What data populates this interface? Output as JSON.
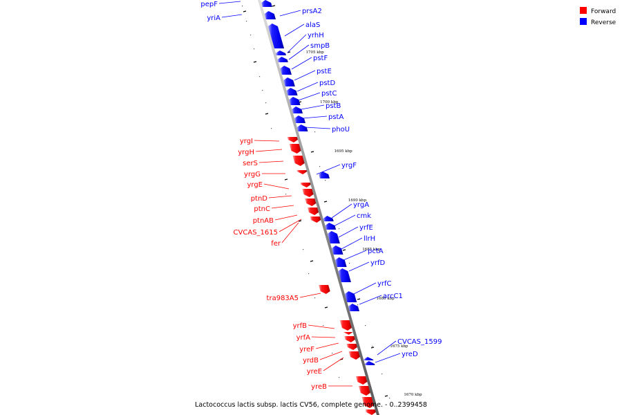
{
  "caption": "Lactococcus lactis subsp. lactis CV56, complete genome. - 0..2399458",
  "legend": [
    {
      "label": "Forward",
      "color": "#ff0000"
    },
    {
      "label": "Reverse",
      "color": "#0000ff"
    }
  ],
  "colors": {
    "forward": "#ff0000",
    "reverse": "#0000ff",
    "backbone": "#999999"
  },
  "ticks": [
    "1705 kbp",
    "1700 kbp",
    "1695 kbp",
    "1690 kbp",
    "1685 kbp",
    "1680 kbp",
    "1675 kbp",
    "1670 kbp"
  ],
  "genes_left": [
    {
      "name": "pepF",
      "strand": "reverse"
    },
    {
      "name": "yriA",
      "strand": "reverse"
    },
    {
      "name": "yrgI",
      "strand": "forward"
    },
    {
      "name": "yrgH",
      "strand": "forward"
    },
    {
      "name": "serS",
      "strand": "forward"
    },
    {
      "name": "yrgG",
      "strand": "forward"
    },
    {
      "name": "yrgE",
      "strand": "forward"
    },
    {
      "name": "ptnD",
      "strand": "forward"
    },
    {
      "name": "ptnC",
      "strand": "forward"
    },
    {
      "name": "ptnAB",
      "strand": "forward"
    },
    {
      "name": "CVCAS_1615",
      "strand": "forward"
    },
    {
      "name": "fer",
      "strand": "forward"
    },
    {
      "name": "tra983A5",
      "strand": "forward"
    },
    {
      "name": "yrfB",
      "strand": "forward"
    },
    {
      "name": "yrfA",
      "strand": "forward"
    },
    {
      "name": "yreF",
      "strand": "forward"
    },
    {
      "name": "yrdB",
      "strand": "forward"
    },
    {
      "name": "yreE",
      "strand": "forward"
    },
    {
      "name": "yreB",
      "strand": "forward"
    }
  ],
  "genes_right": [
    {
      "name": "prsA2",
      "strand": "reverse"
    },
    {
      "name": "alaS",
      "strand": "reverse"
    },
    {
      "name": "yrhH",
      "strand": "reverse"
    },
    {
      "name": "smpB",
      "strand": "reverse"
    },
    {
      "name": "pstF",
      "strand": "reverse"
    },
    {
      "name": "pstE",
      "strand": "reverse"
    },
    {
      "name": "pstD",
      "strand": "reverse"
    },
    {
      "name": "pstC",
      "strand": "reverse"
    },
    {
      "name": "pstB",
      "strand": "reverse"
    },
    {
      "name": "pstA",
      "strand": "reverse"
    },
    {
      "name": "phoU",
      "strand": "reverse"
    },
    {
      "name": "yrgF",
      "strand": "reverse"
    },
    {
      "name": "yrgA",
      "strand": "reverse"
    },
    {
      "name": "cmk",
      "strand": "reverse"
    },
    {
      "name": "yrfE",
      "strand": "reverse"
    },
    {
      "name": "llrH",
      "strand": "reverse"
    },
    {
      "name": "pctA",
      "strand": "reverse"
    },
    {
      "name": "yrfD",
      "strand": "reverse"
    },
    {
      "name": "yrfC",
      "strand": "reverse"
    },
    {
      "name": "arcC1",
      "strand": "reverse"
    },
    {
      "name": "CVCAS_1599",
      "strand": "reverse"
    },
    {
      "name": "yreD",
      "strand": "reverse"
    }
  ]
}
